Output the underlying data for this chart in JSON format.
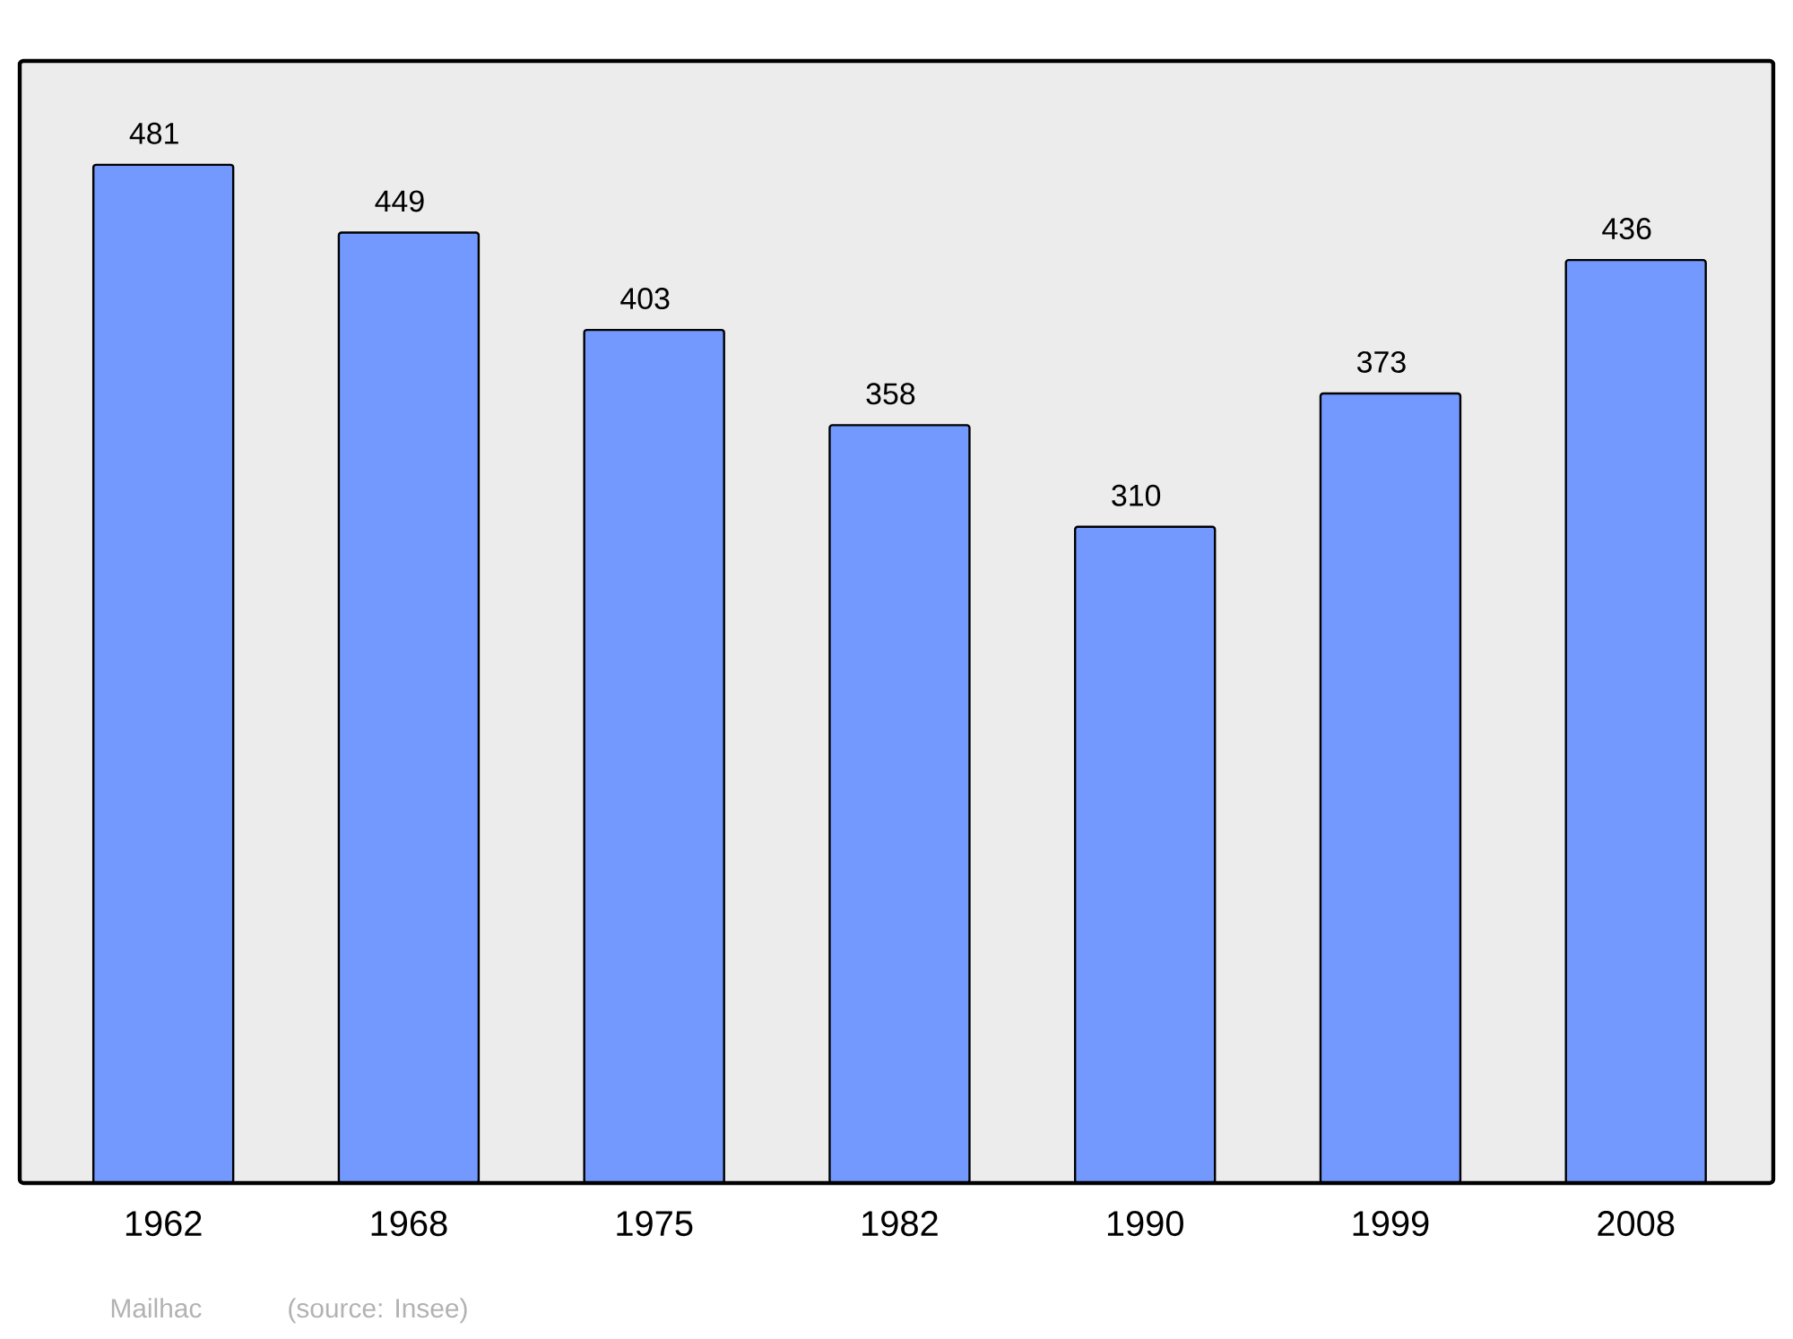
{
  "chart_data": {
    "type": "bar",
    "categories": [
      "1962",
      "1968",
      "1975",
      "1982",
      "1990",
      "1999",
      "2008"
    ],
    "values": [
      481,
      449,
      403,
      358,
      310,
      373,
      436
    ],
    "color": "#7399ff",
    "data_labels": true,
    "annotations": [
      "Mailhac",
      "(source: Insee)"
    ]
  }
}
